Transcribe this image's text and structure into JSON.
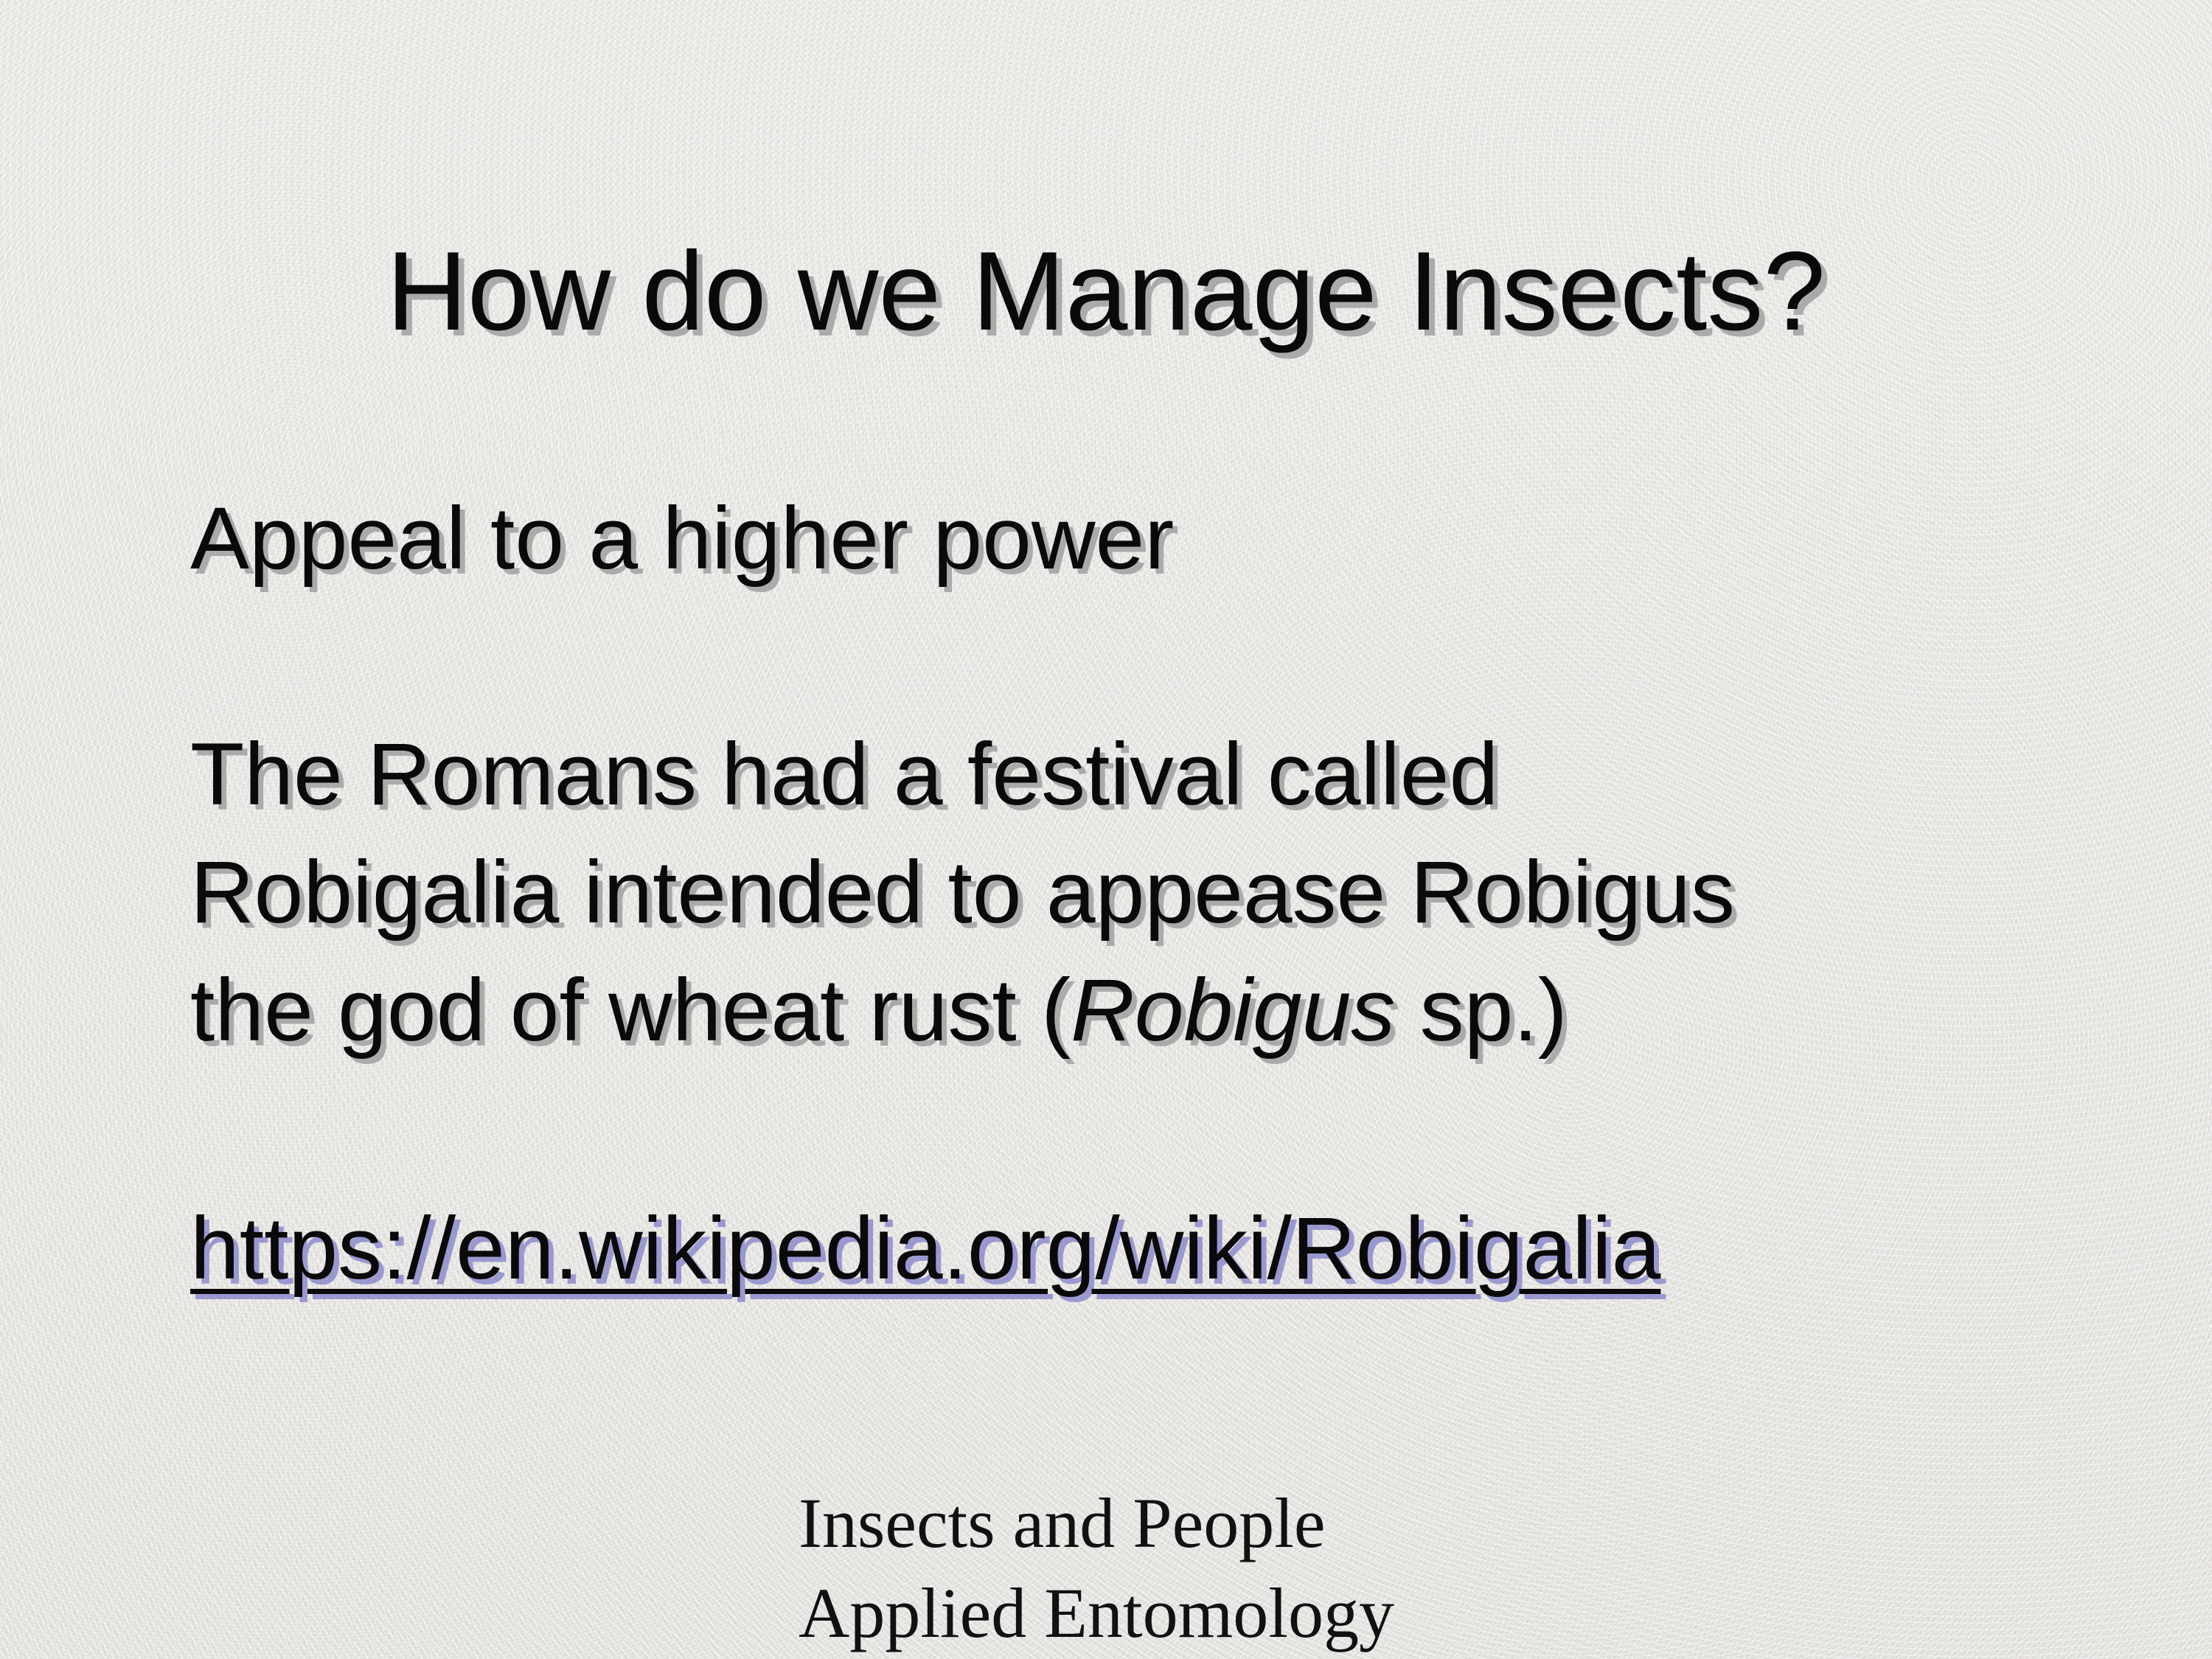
{
  "slide": {
    "title": "How do we Manage Insects?",
    "line1": "Appeal to a higher power",
    "para2": {
      "line_a": "The Romans had a festival called",
      "line_b": "Robigalia intended to appease Robigus",
      "line_c_prefix": "the god of wheat rust (",
      "line_c_italic": "Robigus",
      "line_c_suffix": " sp.)"
    },
    "link_text": "https://en.wikipedia.org/wiki/Robigalia",
    "footer": {
      "line1": "Insects and People",
      "line2": "Applied Entomology"
    }
  }
}
